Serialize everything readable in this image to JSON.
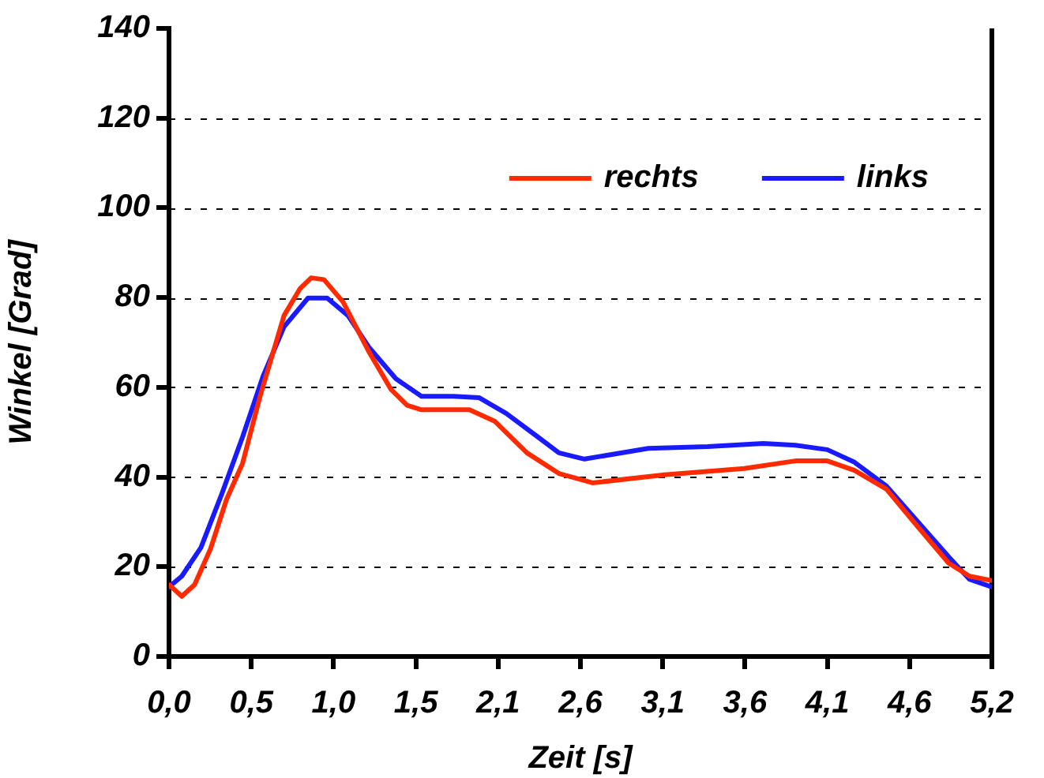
{
  "chart_data": {
    "type": "line",
    "xlabel": "Zeit [s]",
    "ylabel": "Winkel [Grad]",
    "xlim": [
      0,
      5.15
    ],
    "xticks": [
      {
        "value": 0,
        "label": "0,0"
      },
      {
        "value": 0.515,
        "label": "0,5"
      },
      {
        "value": 1.03,
        "label": "1,0"
      },
      {
        "value": 1.545,
        "label": "1,5"
      },
      {
        "value": 2.06,
        "label": "2,1"
      },
      {
        "value": 2.575,
        "label": "2,6"
      },
      {
        "value": 3.09,
        "label": "3,1"
      },
      {
        "value": 3.605,
        "label": "3,6"
      },
      {
        "value": 4.12,
        "label": "4,1"
      },
      {
        "value": 4.635,
        "label": "4,6"
      },
      {
        "value": 5.15,
        "label": "5,2"
      }
    ],
    "ylim": [
      0,
      140
    ],
    "yticks": [
      0,
      20,
      40,
      60,
      80,
      100,
      120,
      140
    ],
    "grid": "y",
    "legend": "top right",
    "marker": "none",
    "line_style": "solid",
    "series": [
      {
        "name": "rechts",
        "color": "#ff2a00",
        "x": [
          0,
          0.08,
          0.16,
          0.26,
          0.36,
          0.46,
          0.57,
          0.72,
          0.82,
          0.89,
          0.97,
          1.09,
          1.25,
          1.39,
          1.49,
          1.58,
          1.88,
          2.04,
          2.24,
          2.44,
          2.58,
          2.65,
          3.1,
          3.6,
          3.92,
          4.12,
          4.29,
          4.49,
          4.68,
          4.88,
          5.01,
          5.15
        ],
        "values": [
          16,
          13.4,
          16,
          24,
          35,
          43,
          58,
          76,
          82,
          84.4,
          84,
          79,
          68,
          59.5,
          56,
          55,
          55,
          52.4,
          45.4,
          40.8,
          39.4,
          38.7,
          40.5,
          41.9,
          43.6,
          43.6,
          41.5,
          37.3,
          29.2,
          20.8,
          17.9,
          16.9
        ]
      },
      {
        "name": "links",
        "color": "#1a1aff",
        "x": [
          0,
          0.08,
          0.2,
          0.33,
          0.46,
          0.59,
          0.72,
          0.87,
          0.99,
          1.12,
          1.25,
          1.42,
          1.58,
          1.78,
          1.94,
          2.11,
          2.31,
          2.44,
          2.6,
          3.0,
          3.37,
          3.72,
          3.92,
          4.12,
          4.29,
          4.49,
          4.68,
          4.88,
          5.01,
          5.15
        ],
        "values": [
          15.5,
          17.9,
          24.3,
          36.2,
          48.9,
          62.6,
          73.5,
          79.9,
          79.9,
          76,
          69,
          61.9,
          58,
          58,
          57.7,
          54.2,
          48.9,
          45.4,
          44,
          46.4,
          46.8,
          47.5,
          47.1,
          46.1,
          43.3,
          38,
          30.3,
          22.2,
          17.2,
          15.5
        ]
      }
    ]
  }
}
